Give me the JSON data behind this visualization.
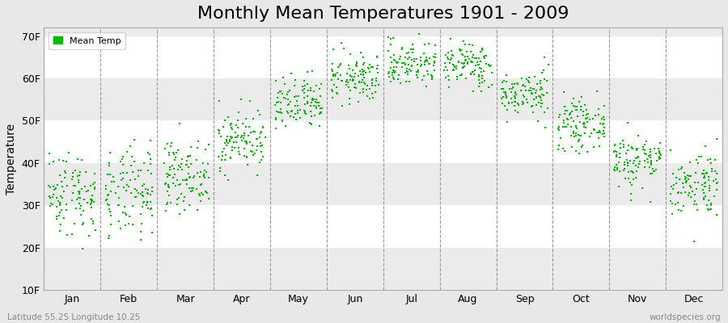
{
  "title": "Monthly Mean Temperatures 1901 - 2009",
  "ylabel": "Temperature",
  "xlabel_labels": [
    "Jan",
    "Feb",
    "Mar",
    "Apr",
    "May",
    "Jun",
    "Jul",
    "Aug",
    "Sep",
    "Oct",
    "Nov",
    "Dec"
  ],
  "ylim": [
    10,
    72
  ],
  "yticks": [
    10,
    20,
    30,
    40,
    50,
    60,
    70
  ],
  "ytick_labels": [
    "10F",
    "20F",
    "30F",
    "40F",
    "50F",
    "60F",
    "70F"
  ],
  "dot_color": "#00bb00",
  "bg_color": "#e8e8e8",
  "plot_bg_color": "#ffffff",
  "band_color": "#ebebeb",
  "title_fontsize": 16,
  "legend_label": "Mean Temp",
  "footer_left": "Latitude 55.25 Longitude 10.25",
  "footer_right": "worldspecies.org",
  "years": 109,
  "monthly_means_C": [
    0.5,
    0.3,
    2.8,
    7.5,
    12.0,
    15.5,
    17.5,
    17.3,
    13.5,
    9.5,
    4.8,
    1.8
  ],
  "monthly_stds_C": [
    2.8,
    3.0,
    2.2,
    2.0,
    1.8,
    1.6,
    1.5,
    1.5,
    1.5,
    1.6,
    1.8,
    2.2
  ],
  "seed": 42
}
